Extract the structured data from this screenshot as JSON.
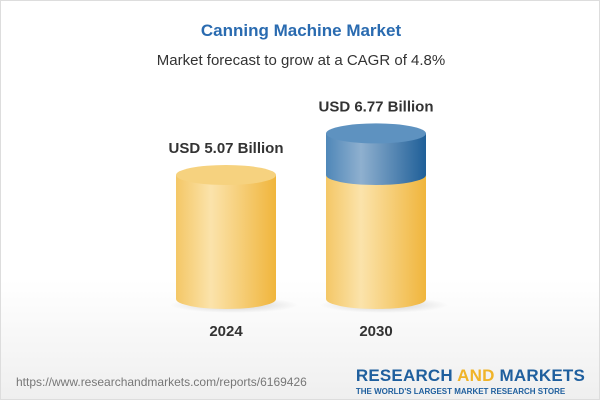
{
  "title": "Canning Machine Market",
  "subtitle": "Market forecast to grow at a CAGR of 4.8%",
  "chart_data": {
    "type": "bar",
    "style": "3d-cylinder",
    "categories": [
      "2024",
      "2030"
    ],
    "values": [
      5.07,
      6.77
    ],
    "data_labels": [
      "USD 5.07 Billion",
      "USD 6.77 Billion"
    ],
    "unit": "USD Billion",
    "colors": {
      "base": "#f3c45a",
      "growth": "#3f7fb3"
    }
  },
  "footer": {
    "url": "https://www.researchandmarkets.com/reports/6169426",
    "logo_part1": "RESEARCH ",
    "logo_part2": "AND",
    "logo_part3": " MARKETS",
    "logo_tagline": "THE WORLD'S LARGEST MARKET RESEARCH STORE"
  }
}
